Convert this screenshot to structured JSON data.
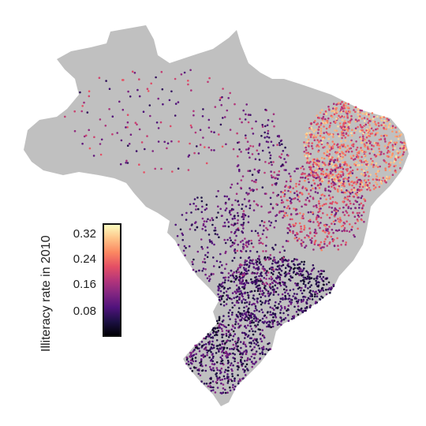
{
  "legend": {
    "title": "Illiteracy rate in 2010",
    "ticks": [
      "0.32",
      "0.24",
      "0.16",
      "0.08"
    ],
    "tick_values": [
      0.32,
      0.24,
      0.16,
      0.08
    ],
    "range": [
      0.0,
      0.36
    ],
    "colors": [
      "#000004",
      "#1c1044",
      "#4f127b",
      "#812581",
      "#b5367a",
      "#e55064",
      "#fb8761",
      "#fec287",
      "#fcfdbf"
    ]
  },
  "map": {
    "land_color": "#c0c0c0",
    "subject": "Brazil municipalities"
  }
}
